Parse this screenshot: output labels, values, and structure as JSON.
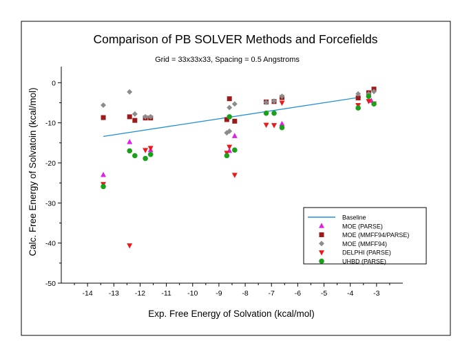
{
  "chart_data": {
    "type": "scatter",
    "title": "Comparison of PB SOLVER Methods and Forcefields",
    "subtitle": "Grid = 33x33x33, Spacing = 0.5 Angstroms",
    "xlabel": "Exp. Free Energy of Solvation (kcal/mol)",
    "ylabel": "Calc. Free Energy of Solvatoin (kcal/mol)",
    "xlim": [
      -15,
      -2
    ],
    "ylim": [
      -50,
      4
    ],
    "x_ticks": [
      -14,
      -13,
      -12,
      -11,
      -10,
      -9,
      -8,
      -7,
      -6,
      -5,
      -4,
      -3
    ],
    "y_ticks": [
      0,
      -10,
      -20,
      -30,
      -40,
      -50
    ],
    "grid": false,
    "legend_position": "bottom-right",
    "series": [
      {
        "name": "Baseline",
        "type": "line",
        "color": "#1f8fd6",
        "points": [
          [
            -13.4,
            -13.4
          ],
          [
            -3.6,
            -3.6
          ]
        ]
      },
      {
        "name": "MOE (PARSE)",
        "marker": "triangle-up",
        "color": "#e020e0",
        "points": [
          [
            -13.4,
            -23.0
          ],
          [
            -12.4,
            -14.8
          ],
          [
            -11.6,
            -16.8
          ],
          [
            -8.6,
            -17.0
          ],
          [
            -8.4,
            -13.3
          ],
          [
            -6.6,
            -10.3
          ],
          [
            -3.7,
            -6.0
          ],
          [
            -3.2,
            -4.5
          ]
        ]
      },
      {
        "name": "MOE (MMFF94/PARSE)",
        "marker": "square",
        "color": "#9b1a1a",
        "points": [
          [
            -13.4,
            -8.7
          ],
          [
            -12.4,
            -8.5
          ],
          [
            -12.2,
            -9.4
          ],
          [
            -11.8,
            -8.8
          ],
          [
            -11.6,
            -8.8
          ],
          [
            -8.6,
            -4.0
          ],
          [
            -8.7,
            -9.2
          ],
          [
            -8.4,
            -9.6
          ],
          [
            -7.2,
            -4.8
          ],
          [
            -6.9,
            -4.7
          ],
          [
            -6.6,
            -3.7
          ],
          [
            -3.7,
            -3.8
          ],
          [
            -3.3,
            -2.5
          ],
          [
            -3.1,
            -1.6
          ]
        ]
      },
      {
        "name": "MOE (MMFF94)",
        "marker": "diamond",
        "color": "#8c8c8c",
        "points": [
          [
            -13.4,
            -5.6
          ],
          [
            -12.4,
            -2.3
          ],
          [
            -12.2,
            -7.8
          ],
          [
            -11.8,
            -8.5
          ],
          [
            -11.6,
            -8.5
          ],
          [
            -8.7,
            -12.5
          ],
          [
            -8.6,
            -12.1
          ],
          [
            -8.6,
            -6.2
          ],
          [
            -8.4,
            -5.3
          ],
          [
            -7.2,
            -4.9
          ],
          [
            -6.9,
            -4.6
          ],
          [
            -6.6,
            -3.4
          ],
          [
            -3.7,
            -2.8
          ],
          [
            -3.3,
            -2.8
          ],
          [
            -3.1,
            -2.2
          ]
        ]
      },
      {
        "name": "DELPHI (PARSE)",
        "marker": "triangle-down",
        "color": "#e81a1a",
        "points": [
          [
            -13.4,
            -25.3
          ],
          [
            -12.4,
            -40.6
          ],
          [
            -11.8,
            -16.8
          ],
          [
            -11.6,
            -16.3
          ],
          [
            -8.7,
            -17.5
          ],
          [
            -8.6,
            -16.0
          ],
          [
            -8.4,
            -23.0
          ],
          [
            -7.2,
            -10.5
          ],
          [
            -6.9,
            -10.6
          ],
          [
            -6.6,
            -5.0
          ],
          [
            -3.7,
            -5.6
          ],
          [
            -3.3,
            -4.6
          ],
          [
            -3.1,
            -5.2
          ]
        ]
      },
      {
        "name": "UHBD (PARSE)",
        "marker": "circle",
        "color": "#1aa01a",
        "points": [
          [
            -13.4,
            -25.9
          ],
          [
            -12.4,
            -17.0
          ],
          [
            -12.2,
            -18.2
          ],
          [
            -11.8,
            -18.9
          ],
          [
            -11.6,
            -17.9
          ],
          [
            -8.7,
            -18.2
          ],
          [
            -8.6,
            -8.5
          ],
          [
            -8.4,
            -16.8
          ],
          [
            -7.2,
            -7.6
          ],
          [
            -6.9,
            -7.6
          ],
          [
            -6.6,
            -11.2
          ],
          [
            -3.7,
            -6.3
          ],
          [
            -3.3,
            -3.4
          ],
          [
            -3.1,
            -5.3
          ]
        ]
      }
    ]
  }
}
